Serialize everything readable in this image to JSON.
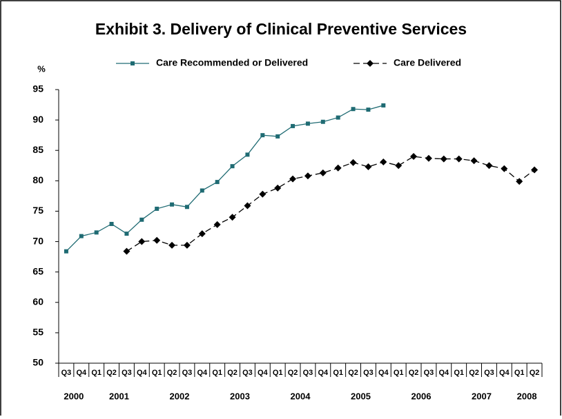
{
  "chart_data": {
    "type": "line",
    "title": "Exhibit 3. Delivery of Clinical Preventive Services",
    "ylabel": "%",
    "categories": [
      "Q3",
      "Q4",
      "Q1",
      "Q2",
      "Q3",
      "Q4",
      "Q1",
      "Q2",
      "Q3",
      "Q4",
      "Q1",
      "Q2",
      "Q3",
      "Q4",
      "Q1",
      "Q2",
      "Q3",
      "Q4",
      "Q1",
      "Q2",
      "Q3",
      "Q4",
      "Q1",
      "Q2",
      "Q3",
      "Q4",
      "Q1",
      "Q2",
      "Q3",
      "Q4",
      "Q1",
      "Q2"
    ],
    "year_labels": [
      "2000",
      "2001",
      "2002",
      "2003",
      "2004",
      "2005",
      "2006",
      "2007",
      "2008"
    ],
    "series": [
      {
        "name": "Care Recommended or Delivered",
        "color": "#1f6b73",
        "marker": "square",
        "dashed": false,
        "values": [
          68.4,
          70.9,
          71.5,
          72.9,
          71.3,
          73.6,
          75.4,
          76.1,
          75.7,
          78.4,
          79.8,
          82.4,
          84.3,
          87.5,
          87.3,
          89.0,
          89.4,
          89.7,
          90.4,
          91.8,
          91.7,
          92.4,
          null,
          null,
          null,
          null,
          null,
          null,
          null,
          null,
          null,
          null
        ]
      },
      {
        "name": "Care Delivered",
        "color": "#000000",
        "marker": "diamond",
        "dashed": true,
        "values": [
          null,
          null,
          null,
          null,
          68.4,
          70.0,
          70.2,
          69.4,
          69.4,
          71.3,
          72.8,
          74.0,
          75.9,
          77.8,
          78.8,
          80.3,
          80.8,
          81.3,
          82.1,
          83.0,
          82.3,
          83.1,
          82.5,
          84.0,
          83.7,
          83.6,
          83.6,
          83.3,
          82.5,
          82.0,
          79.9,
          81.8
        ]
      }
    ],
    "ylim": [
      50,
      95
    ],
    "yticks": [
      50,
      55,
      60,
      65,
      70,
      75,
      80,
      85,
      90,
      95
    ],
    "grid": false
  }
}
